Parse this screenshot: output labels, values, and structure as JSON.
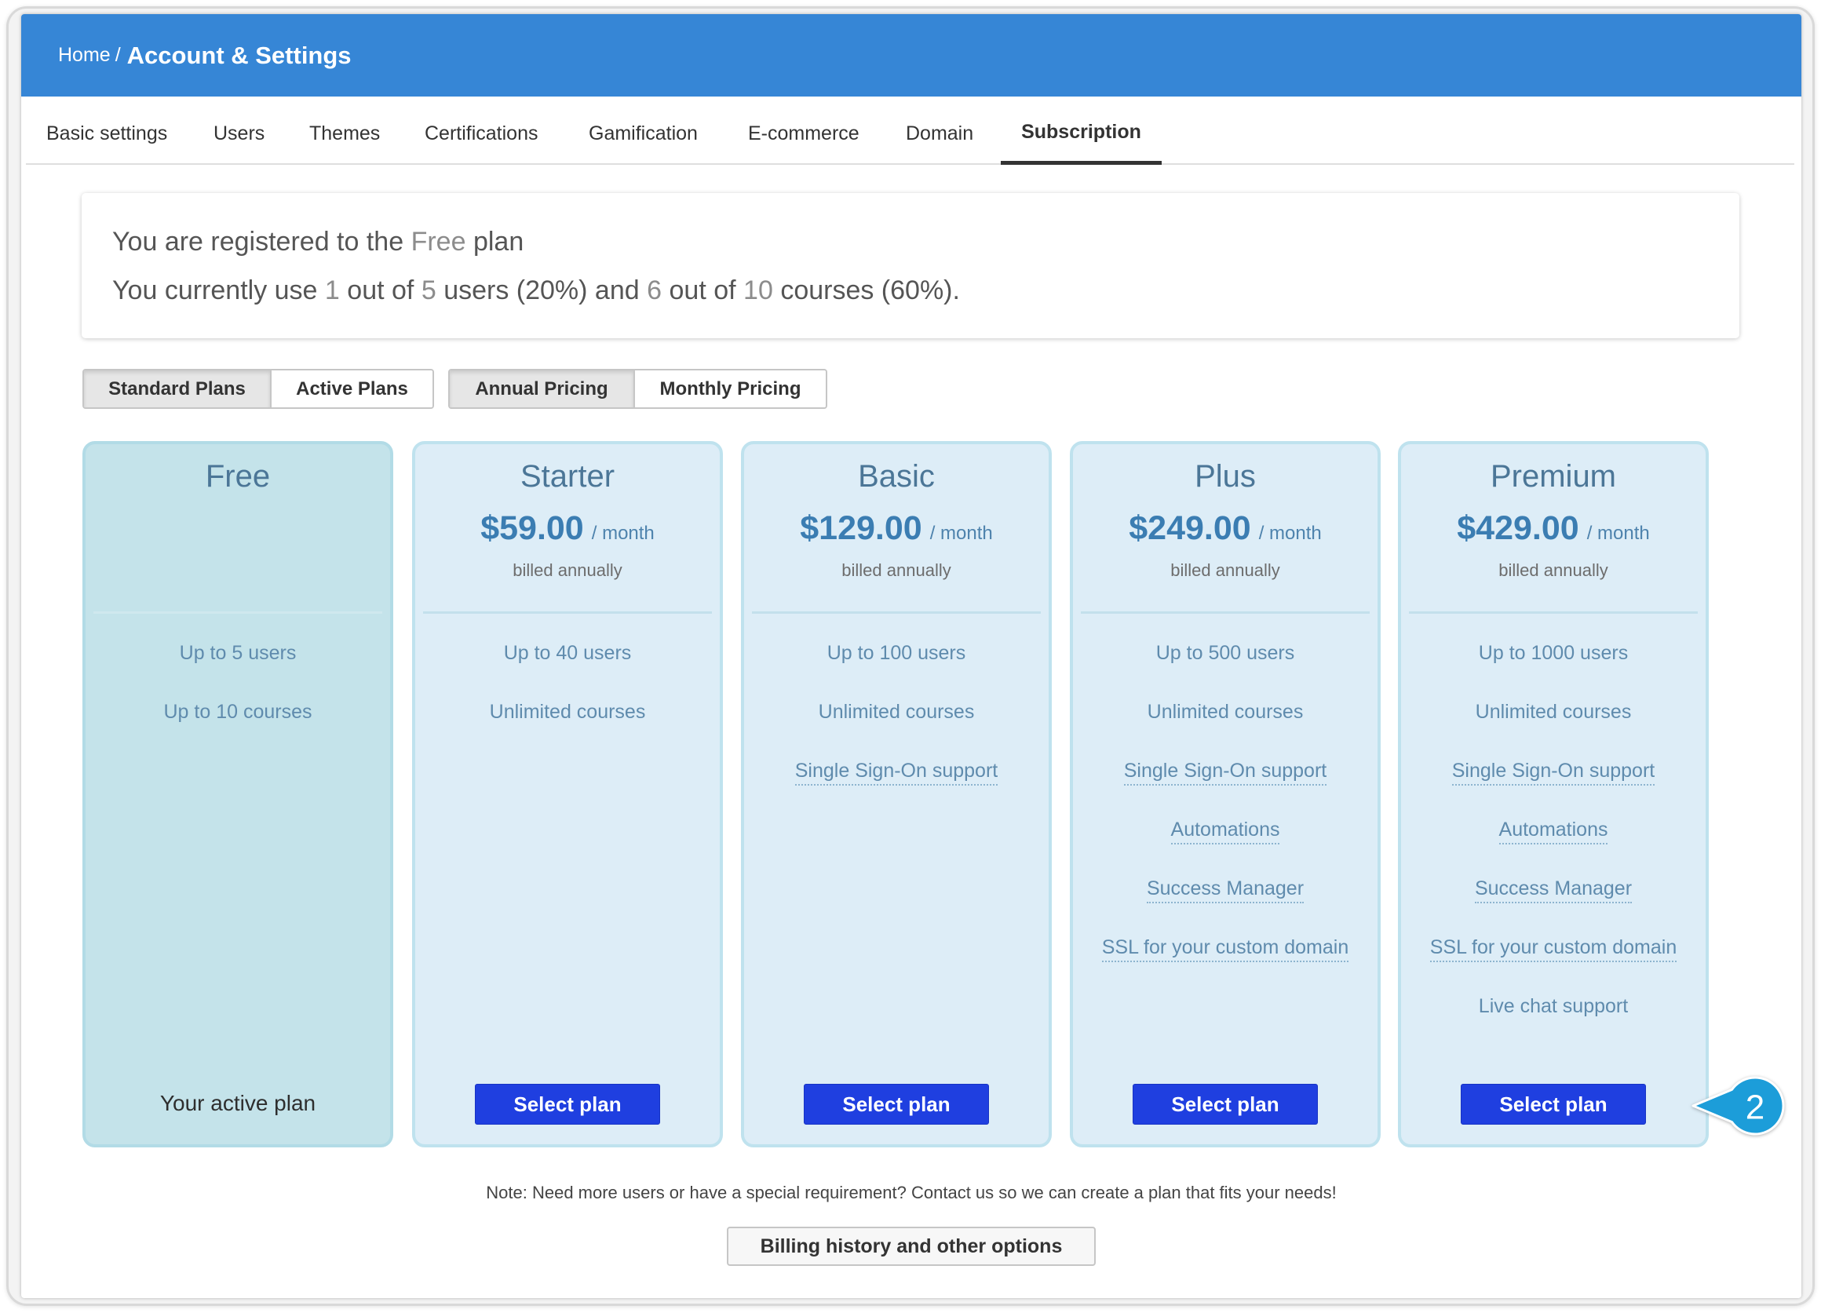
{
  "header": {
    "home": "Home",
    "separator": "/",
    "title": "Account & Settings"
  },
  "tabs": [
    "Basic settings",
    "Users",
    "Themes",
    "Certifications",
    "Gamification",
    "E-commerce",
    "Domain",
    "Subscription"
  ],
  "summary": {
    "line1": {
      "text_1": "You are registered to the",
      "plan": "Free",
      "text_2": "plan"
    },
    "line2": {
      "text_1": "You currently use",
      "users_used": "1",
      "text_2": "out of",
      "users_limit": "5",
      "text_3": "users (20%) and",
      "courses_used": "6",
      "text_4": "out of",
      "courses_limit": "10",
      "text_5": "courses (60%)."
    }
  },
  "plan_filter": [
    "Standard Plans",
    "Active Plans"
  ],
  "pricing_period": [
    "Annual Pricing",
    "Monthly Pricing"
  ],
  "plans": [
    {
      "name": "Free",
      "features": [
        "Up to 5 users",
        "Up to 10 courses"
      ],
      "status": "Your active plan"
    },
    {
      "name": "Starter",
      "price": "$59.00",
      "period": "/ month",
      "billing": "billed annually",
      "features": [
        "Up to 40 users",
        "Unlimited courses"
      ],
      "action": "Select plan"
    },
    {
      "name": "Basic",
      "price": "$129.00",
      "period": "/ month",
      "billing": "billed annually",
      "features": [
        "Up to 100 users",
        "Unlimited courses",
        "Single Sign-On support"
      ],
      "action": "Select plan"
    },
    {
      "name": "Plus",
      "price": "$249.00",
      "period": "/ month",
      "billing": "billed annually",
      "features": [
        "Up to 500 users",
        "Unlimited courses",
        "Single Sign-On support",
        "Automations",
        "Success Manager",
        "SSL for your custom domain"
      ],
      "action": "Select plan"
    },
    {
      "name": "Premium",
      "price": "$429.00",
      "period": "/ month",
      "billing": "billed annually",
      "features": [
        "Up to 1000 users",
        "Unlimited courses",
        "Single Sign-On support",
        "Automations",
        "Success Manager",
        "SSL for your custom domain",
        "Live chat support"
      ],
      "action": "Select plan"
    }
  ],
  "note": "Note: Need more users or have a special requirement? Contact us so we can create a plan that fits your needs!",
  "billing_button": "Billing history and other options",
  "callout": {
    "number": "2"
  },
  "colors": {
    "header_bg": "#3686d6",
    "select_button_bg": "#1f3fe0",
    "callout_bg": "#1c9dd9",
    "free_card_bg": "#c4e3ea",
    "plan_card_bg": "#ddedf7"
  }
}
